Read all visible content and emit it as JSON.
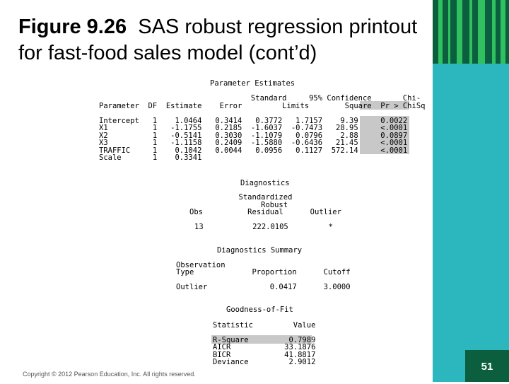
{
  "slide": {
    "title_bold": "Figure 9.26",
    "title_rest": "SAS robust regression printout for fast-food sales model (cont’d)",
    "copyright": "Copyright © 2012 Pearson Education, Inc. All rights reserved.",
    "page_number": "51"
  },
  "sas": {
    "param_title": "Parameter Estimates",
    "param_header": [
      "                                  Standard     95% Confidence       Chi-",
      "Parameter  DF  Estimate    Error         Limits        Square  Pr > ChiSq"
    ],
    "param_rows": [
      "Intercept   1    1.0464   0.3414   0.3772   1.7157    9.39     0.0022",
      "X1          1   -1.1755   0.2185  -1.6037  -0.7473   28.95     <.0001",
      "X2          1   -0.5141   0.3030  -1.1079   0.0796    2.88     0.0897",
      "X3          1   -1.1158   0.2409  -1.5880  -0.6436   21.45     <.0001",
      "TRAFFIC     1    0.1042   0.0044   0.0956   0.1127  572.14     <.0001",
      "Scale       1    0.3341"
    ],
    "diag_title": "Diagnostics",
    "diag_header": [
      "           Standardized",
      "                Robust",
      "Obs          Residual      Outlier"
    ],
    "diag_row": "13           222.0105         *",
    "summary_title": "Diagnostics Summary",
    "summary_header": [
      "Observation",
      "Type             Proportion      Cutoff"
    ],
    "summary_row": "Outlier              0.0417      3.0000",
    "gof_title": "Goodness-of-Fit",
    "gof_header": "Statistic         Value",
    "gof_rows": [
      "R-Square         0.7989",
      "AICR            33.1876",
      "BICR            41.8817",
      "Deviance         2.9012"
    ]
  },
  "colors": {
    "teal": "#2cb7bf",
    "dark_green": "#0b5f3e",
    "green": "#30c060",
    "highlight": "#c8c8c8"
  }
}
